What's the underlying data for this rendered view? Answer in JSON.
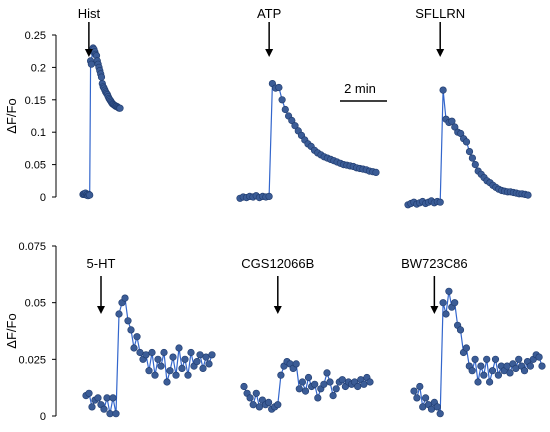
{
  "colors": {
    "series": "#3b5c96",
    "line": "#3366cc",
    "text": "#000000",
    "axis": "#000000"
  },
  "scale_bar": {
    "label": "2 min"
  },
  "chart_data": [
    {
      "type": "line",
      "ylabel": "ΔF/Fo",
      "ylim": [
        0,
        0.25
      ],
      "ytick_labels": [
        "0",
        "0.05",
        "0.1",
        "0.15",
        "0.2",
        "0.25"
      ],
      "ytick_values": [
        0,
        0.05,
        0.1,
        0.15,
        0.2,
        0.25
      ],
      "panels": [
        {
          "label": "Hist",
          "arrow_index": 7,
          "values": [
            0.004,
            0.005,
            0.004,
            0.006,
            0.003,
            0.004,
            0.002,
            0.004,
            0.003,
            0.21,
            0.205,
            0.225,
            0.23,
            0.228,
            0.224,
            0.22,
            0.218,
            0.21,
            0.205,
            0.2,
            0.195,
            0.19,
            0.185,
            0.175,
            0.17,
            0.168,
            0.165,
            0.162,
            0.16,
            0.158,
            0.155,
            0.152,
            0.15,
            0.148,
            0.146,
            0.144,
            0.143,
            0.142,
            0.141,
            0.14,
            0.14,
            0.139,
            0.138,
            0.137,
            0.137
          ]
        },
        {
          "label": "ATP",
          "arrow_index": 9,
          "values": [
            -0.002,
            0.0,
            -0.001,
            0.001,
            0.0,
            0.002,
            -0.001,
            0.001,
            0.0,
            0.001,
            0.175,
            0.168,
            0.169,
            0.15,
            0.135,
            0.125,
            0.118,
            0.11,
            0.102,
            0.095,
            0.088,
            0.082,
            0.078,
            0.072,
            0.068,
            0.065,
            0.062,
            0.06,
            0.058,
            0.056,
            0.054,
            0.052,
            0.05,
            0.049,
            0.048,
            0.047,
            0.045,
            0.044,
            0.043,
            0.042,
            0.04,
            0.039,
            0.038
          ]
        },
        {
          "label": "SFLLRN",
          "arrow_index": 11,
          "values": [
            -0.012,
            -0.01,
            -0.008,
            -0.011,
            -0.009,
            -0.007,
            -0.01,
            -0.008,
            -0.006,
            -0.009,
            -0.007,
            -0.008,
            0.165,
            0.12,
            0.115,
            0.117,
            0.108,
            0.1,
            0.098,
            0.09,
            0.085,
            0.07,
            0.06,
            0.05,
            0.04,
            0.035,
            0.03,
            0.025,
            0.022,
            0.018,
            0.015,
            0.012,
            0.01,
            0.009,
            0.008,
            0.008,
            0.007,
            0.006,
            0.005,
            0.005,
            0.004,
            0.003
          ]
        }
      ]
    },
    {
      "type": "line",
      "ylabel": "ΔF/Fo",
      "ylim": [
        0,
        0.075
      ],
      "ytick_labels": [
        "0",
        "0.025",
        "0.05",
        "0.075"
      ],
      "ytick_values": [
        0,
        0.025,
        0.05,
        0.075
      ],
      "panels": [
        {
          "label": "5-HT",
          "arrow_index": 5,
          "values": [
            0.009,
            0.01,
            0.004,
            0.007,
            0.008,
            0.005,
            0.003,
            0.008,
            0.001,
            0.008,
            0.001,
            0.045,
            0.05,
            0.052,
            0.042,
            0.038,
            0.03,
            0.035,
            0.028,
            0.025,
            0.027,
            0.02,
            0.028,
            0.018,
            0.025,
            0.022,
            0.028,
            0.015,
            0.02,
            0.026,
            0.018,
            0.03,
            0.021,
            0.025,
            0.018,
            0.028,
            0.022,
            0.024,
            0.027,
            0.021,
            0.026,
            0.023,
            0.027
          ]
        },
        {
          "label": "CGS12066B",
          "arrow_index": 11,
          "values": [
            0.013,
            0.01,
            0.008,
            0.005,
            0.01,
            0.004,
            0.007,
            0.005,
            0.006,
            0.003,
            0.004,
            0.005,
            0.018,
            0.022,
            0.024,
            0.023,
            0.021,
            0.023,
            0.012,
            0.015,
            0.011,
            0.017,
            0.013,
            0.014,
            0.008,
            0.012,
            0.014,
            0.019,
            0.015,
            0.009,
            0.012,
            0.015,
            0.016,
            0.013,
            0.015,
            0.014,
            0.015,
            0.013,
            0.016,
            0.014,
            0.017,
            0.015
          ]
        },
        {
          "label": "BW723C86",
          "arrow_index": 7,
          "values": [
            0.011,
            0.008,
            0.013,
            0.004,
            0.008,
            0.005,
            0.003,
            0.006,
            0.004,
            0.001,
            0.05,
            0.045,
            0.055,
            0.048,
            0.05,
            0.04,
            0.038,
            0.028,
            0.03,
            0.022,
            0.02,
            0.025,
            0.015,
            0.022,
            0.018,
            0.025,
            0.015,
            0.02,
            0.025,
            0.018,
            0.022,
            0.02,
            0.022,
            0.019,
            0.023,
            0.021,
            0.025,
            0.022,
            0.02,
            0.024,
            0.022,
            0.025,
            0.027,
            0.026,
            0.022
          ]
        }
      ]
    }
  ]
}
